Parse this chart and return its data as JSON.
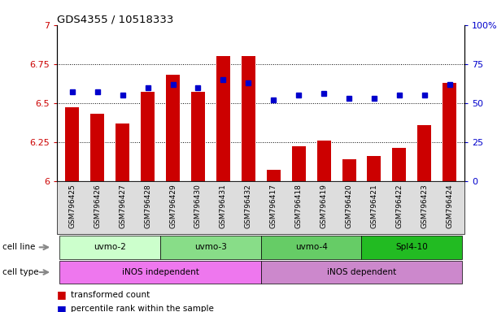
{
  "title": "GDS4355 / 10518333",
  "samples": [
    "GSM796425",
    "GSM796426",
    "GSM796427",
    "GSM796428",
    "GSM796429",
    "GSM796430",
    "GSM796431",
    "GSM796432",
    "GSM796417",
    "GSM796418",
    "GSM796419",
    "GSM796420",
    "GSM796421",
    "GSM796422",
    "GSM796423",
    "GSM796424"
  ],
  "red_values": [
    6.47,
    6.43,
    6.37,
    6.57,
    6.68,
    6.57,
    6.8,
    6.8,
    6.07,
    6.22,
    6.26,
    6.14,
    6.16,
    6.21,
    6.36,
    6.63
  ],
  "blue_values": [
    57,
    57,
    55,
    60,
    62,
    60,
    65,
    63,
    52,
    55,
    56,
    53,
    53,
    55,
    55,
    62
  ],
  "ylim_left": [
    6.0,
    7.0
  ],
  "ylim_right": [
    0,
    100
  ],
  "yticks_left": [
    6.0,
    6.25,
    6.5,
    6.75,
    7.0
  ],
  "yticks_right": [
    0,
    25,
    50,
    75,
    100
  ],
  "ytick_labels_left": [
    "6",
    "6.25",
    "6.5",
    "6.75",
    "7"
  ],
  "ytick_labels_right": [
    "0",
    "25",
    "50",
    "75",
    "100%"
  ],
  "cell_lines_info": [
    {
      "label": "uvmo-2",
      "start": 0,
      "end": 3,
      "color": "#ccffcc"
    },
    {
      "label": "uvmo-3",
      "start": 4,
      "end": 7,
      "color": "#88dd88"
    },
    {
      "label": "uvmo-4",
      "start": 8,
      "end": 11,
      "color": "#66cc66"
    },
    {
      "label": "Spl4-10",
      "start": 12,
      "end": 15,
      "color": "#22bb22"
    }
  ],
  "cell_types_info": [
    {
      "label": "iNOS independent",
      "start": 0,
      "end": 7,
      "color": "#ee77ee"
    },
    {
      "label": "iNOS dependent",
      "start": 8,
      "end": 15,
      "color": "#cc88cc"
    }
  ],
  "bar_color": "#cc0000",
  "dot_color": "#0000cc",
  "left_axis_color": "#cc0000",
  "right_axis_color": "#0000cc",
  "xtick_bg": "#cccccc",
  "label_arrow_color": "#aaaaaa"
}
